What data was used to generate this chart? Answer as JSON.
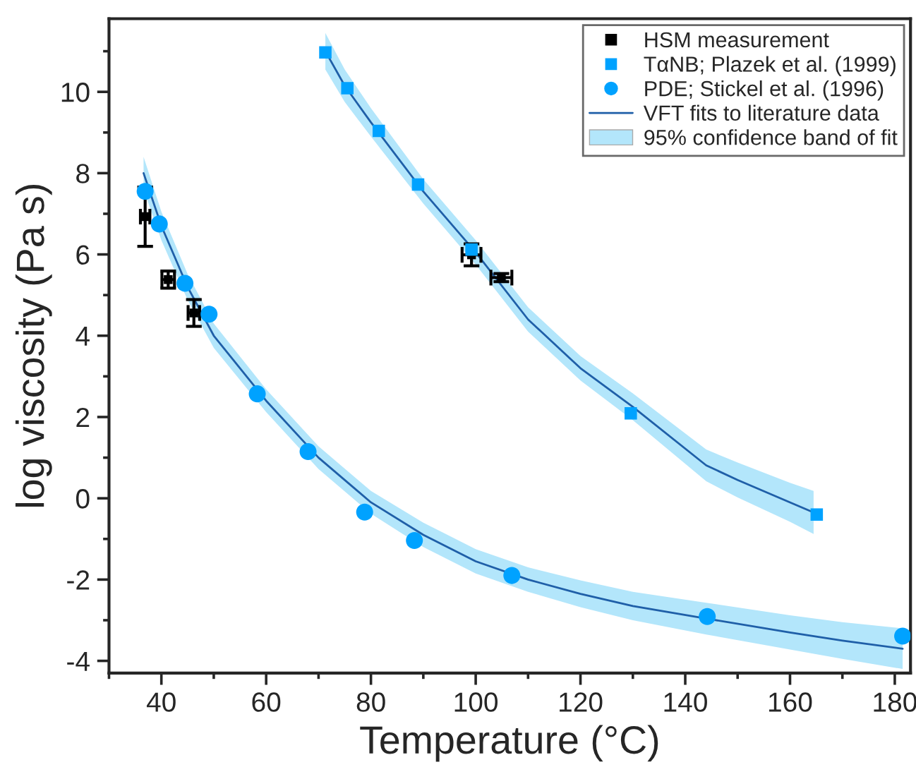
{
  "chart_data": {
    "type": "scatter",
    "xlabel": "Temperature (°C)",
    "ylabel": "log viscosity (Pa s)",
    "xlim": [
      30,
      183
    ],
    "ylim": [
      -4.3,
      11.8
    ],
    "xticks": [
      40,
      60,
      80,
      100,
      120,
      140,
      160,
      180
    ],
    "yticks": [
      -4,
      -2,
      0,
      2,
      4,
      6,
      8,
      10
    ],
    "grid": false,
    "legend": "top right",
    "annotations": [
      "95% confidence band of fit"
    ],
    "series": [
      {
        "name": "HSM measurement",
        "marker": "square",
        "color": "#000000",
        "x": [
          36.9,
          41.3,
          46.2,
          99.2,
          104.9
        ],
        "values": [
          6.93,
          5.38,
          4.56,
          5.99,
          5.43
        ],
        "errors": [
          0.73,
          0.21,
          0.33,
          0.27,
          0.1
        ],
        "xerrors": [
          0.9,
          1.2,
          1.1,
          1.8,
          2.0
        ]
      },
      {
        "name": "TαNB; Plazek et al. (1999)",
        "marker": "square",
        "color": "#00a2ff",
        "x": [
          71.3,
          75.5,
          81.5,
          89.0,
          99.2,
          129.6,
          165.1
        ],
        "values": [
          10.97,
          10.09,
          9.04,
          7.72,
          6.12,
          2.09,
          -0.4
        ]
      },
      {
        "name": "PDE; Stickel et al. (1996)",
        "marker": "circle",
        "color": "#00a2ff",
        "x": [
          36.9,
          39.6,
          44.5,
          49.1,
          58.3,
          68.0,
          78.8,
          88.3,
          106.9,
          144.2,
          181.5
        ],
        "values": [
          7.55,
          6.75,
          5.29,
          4.53,
          2.57,
          1.15,
          -0.34,
          -1.04,
          -1.9,
          -2.91,
          -3.39
        ]
      },
      {
        "name": "VFT fits to literature data",
        "type": "line",
        "color": "#1f5fa8",
        "x": [
          71.3,
          75,
          80,
          90,
          100,
          110,
          120,
          130,
          144,
          150,
          160,
          164.5
        ],
        "values": [
          11.0,
          10.15,
          9.25,
          7.55,
          6.05,
          4.4,
          3.2,
          2.25,
          0.81,
          0.45,
          -0.1,
          -0.35
        ],
        "lower": [
          10.55,
          9.75,
          8.9,
          7.25,
          5.75,
          4.1,
          2.9,
          1.92,
          0.42,
          0.02,
          -0.58,
          -0.88
        ],
        "upper": [
          11.45,
          10.55,
          9.6,
          7.85,
          6.35,
          4.7,
          3.5,
          2.58,
          1.2,
          0.88,
          0.38,
          0.18
        ]
      },
      {
        "type": "line",
        "color": "#1f5fa8",
        "x": [
          36.6,
          40,
          45,
          50,
          60,
          70,
          80,
          90,
          100,
          110,
          120,
          130,
          144,
          160,
          170,
          181.5
        ],
        "values": [
          8.0,
          6.7,
          5.2,
          4.0,
          2.4,
          1.0,
          -0.1,
          -0.9,
          -1.55,
          -2.0,
          -2.35,
          -2.65,
          -2.96,
          -3.3,
          -3.5,
          -3.7
        ],
        "lower": [
          7.6,
          6.35,
          4.88,
          3.7,
          2.12,
          0.72,
          -0.38,
          -1.2,
          -1.85,
          -2.3,
          -2.68,
          -3.0,
          -3.35,
          -3.72,
          -3.95,
          -4.2
        ],
        "upper": [
          8.4,
          7.05,
          5.52,
          4.3,
          2.68,
          1.28,
          0.18,
          -0.6,
          -1.25,
          -1.7,
          -2.02,
          -2.3,
          -2.57,
          -2.88,
          -3.05,
          -3.2
        ]
      }
    ]
  }
}
